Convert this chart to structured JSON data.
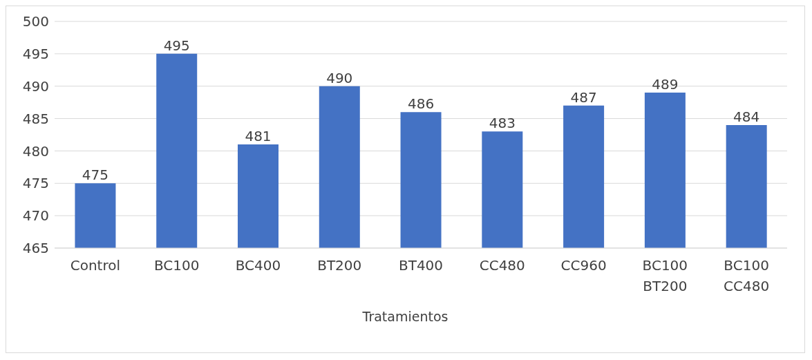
{
  "chart_data": {
    "type": "bar",
    "xlabel": "Tratamientos",
    "categories": [
      "Control",
      "BC100",
      "BC400",
      "BT200",
      "BT400",
      "CC480",
      "CC960",
      "BC100 BT200",
      "BC100 CC480"
    ],
    "values": [
      475,
      495,
      481,
      490,
      486,
      483,
      487,
      489,
      484
    ],
    "color": "#4472c4",
    "ylim": [
      465,
      500
    ],
    "yticks": [
      465,
      470,
      475,
      480,
      485,
      490,
      495,
      500
    ],
    "grid": "y",
    "data_labels": true
  }
}
